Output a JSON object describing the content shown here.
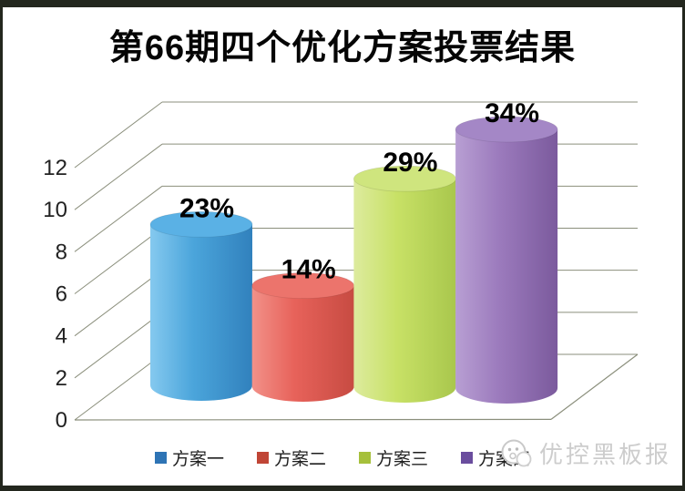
{
  "title": "第66期四个优化方案投票结果",
  "chart_data": {
    "type": "bar",
    "subtype": "3d-cylinder",
    "title": "第66期四个优化方案投票结果",
    "categories": [
      "方案一",
      "方案二",
      "方案三",
      "方案四"
    ],
    "values": [
      8,
      5,
      10,
      12
    ],
    "data_labels": [
      "23%",
      "14%",
      "29%",
      "34%"
    ],
    "y_ticks": [
      0,
      2,
      4,
      6,
      8,
      10,
      12
    ],
    "ylim": [
      0,
      12
    ],
    "xlabel": "",
    "ylabel": "",
    "grid": true,
    "legend_position": "bottom",
    "series_colors": [
      "#4ba5db",
      "#e7625a",
      "#c8e166",
      "#9c7bbd"
    ],
    "legend_colors": [
      "#2e74b5",
      "#c04536",
      "#a6c03c",
      "#6a4d9e"
    ],
    "cylinder_shades": [
      {
        "light": "#85c9ef",
        "mid": "#4ba5db",
        "dark": "#3181bd",
        "top": "#5ab1e5"
      },
      {
        "light": "#f29189",
        "mid": "#e7625a",
        "dark": "#c74b42",
        "top": "#ec746c"
      },
      {
        "light": "#ddeb9e",
        "mid": "#c8e166",
        "dark": "#a9c74d",
        "top": "#cfe57e"
      },
      {
        "light": "#b89fd3",
        "mid": "#9c7bbd",
        "dark": "#7b5a9d",
        "top": "#a487c6"
      }
    ],
    "grid_color": "#8b8f7c",
    "tick_color": "#222222",
    "label_color": "#000000"
  },
  "watermark": {
    "text": "优控黑板报",
    "icon": "smiley-face-icon",
    "color": "#cdcdcd"
  },
  "frame_color": "#23271e"
}
